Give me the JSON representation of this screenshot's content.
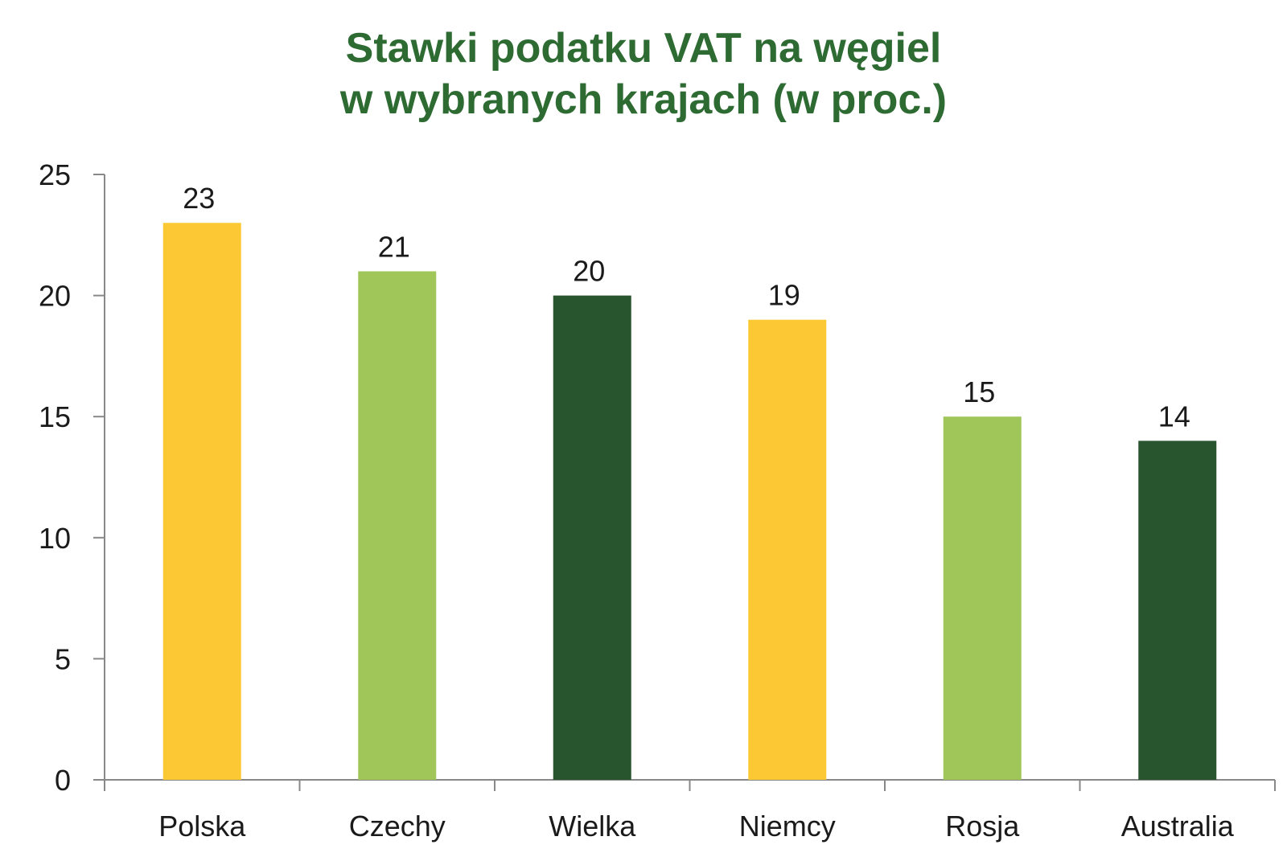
{
  "chart_data": {
    "type": "bar",
    "title_line1": "Stawki podatku VAT na węgiel",
    "title_line2": "w wybranych krajach (w proc.)",
    "categories": [
      "Polska",
      "Czechy",
      "Wielka",
      "Niemcy",
      "Rosja",
      "Australia"
    ],
    "values": [
      23,
      21,
      20,
      19,
      15,
      14
    ],
    "value_labels": [
      "23",
      "21",
      "20",
      "19",
      "15",
      "14"
    ],
    "colors": [
      "#fcc934",
      "#a0c65a",
      "#28552e",
      "#fcc934",
      "#a0c65a",
      "#28552e"
    ],
    "ylim": [
      0,
      25
    ],
    "yticks": [
      0,
      5,
      10,
      15,
      20,
      25
    ],
    "ytick_labels": [
      "0",
      "5",
      "10",
      "15",
      "20",
      "25"
    ],
    "grid": false,
    "legend": "none"
  },
  "colors": {
    "title": "#2e6b33",
    "axis": "#888888",
    "text": "#1a1a1a"
  }
}
